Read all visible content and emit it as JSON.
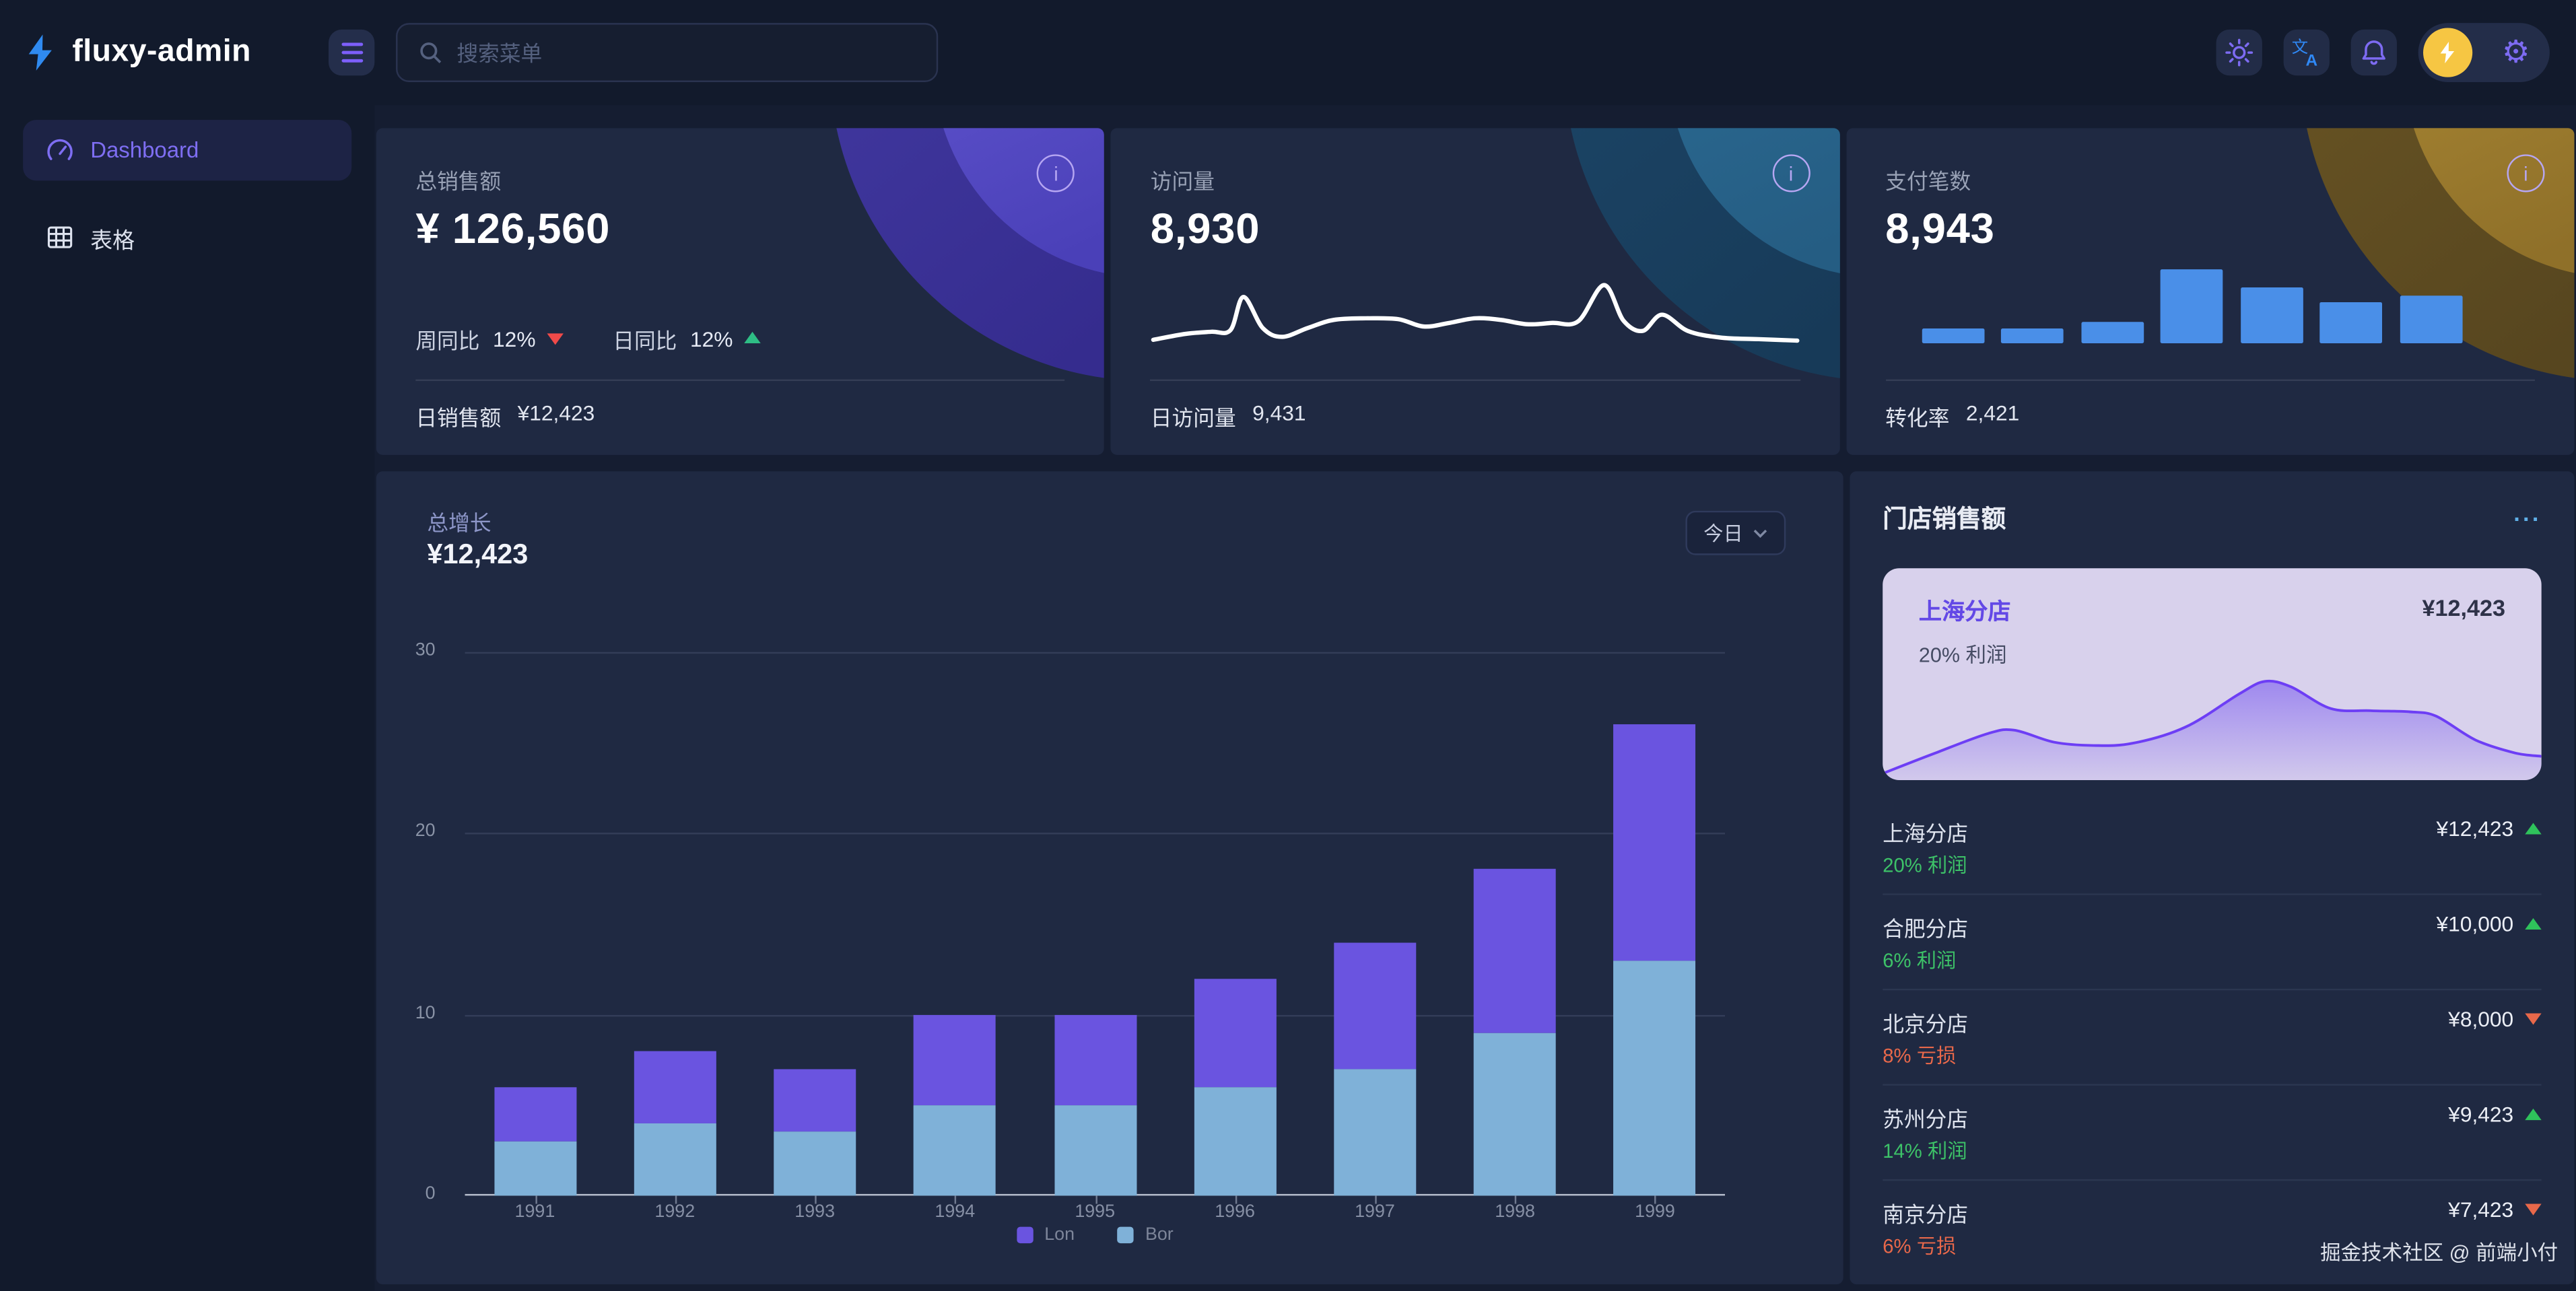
{
  "app": {
    "name": "fluxy-admin"
  },
  "topbar": {
    "search": {
      "placeholder": "搜索菜单"
    },
    "icons": {
      "menu": "hamburger",
      "search": "magnifier",
      "theme": "sun",
      "language": "translate",
      "notifications": "bell",
      "avatar": "lightning-bolt",
      "settings": "gear"
    }
  },
  "sidebar": {
    "items": [
      {
        "label": "Dashboard",
        "icon": "gauge",
        "active": true
      },
      {
        "label": "表格",
        "icon": "table",
        "active": false
      }
    ]
  },
  "stat_cards": [
    {
      "title": "总销售额",
      "value": "¥ 126,560",
      "theme": "purple",
      "trends": [
        {
          "label": "周同比",
          "value": "12%",
          "direction": "down"
        },
        {
          "label": "日同比",
          "value": "12%",
          "direction": "up"
        }
      ],
      "footer_label": "日销售额",
      "footer_value": "¥12,423"
    },
    {
      "title": "访问量",
      "value": "8,930",
      "theme": "blue",
      "footer_label": "日访问量",
      "footer_value": "9,431"
    },
    {
      "title": "支付笔数",
      "value": "8,943",
      "theme": "gold",
      "footer_label": "转化率",
      "footer_value": "2,421"
    }
  ],
  "growth_card": {
    "title": "总增长",
    "value": "¥12,423",
    "range_label": "今日"
  },
  "store_panel": {
    "title": "门店销售额",
    "menu_icon": "ellipsis",
    "highlight": {
      "name": "上海分店",
      "value": "¥12,423",
      "note": "20% 利润"
    },
    "stores": [
      {
        "name": "上海分店",
        "value": "¥12,423",
        "direction": "up",
        "note": "20% 利润",
        "note_tone": "profit"
      },
      {
        "name": "合肥分店",
        "value": "¥10,000",
        "direction": "up",
        "note": "6% 利润",
        "note_tone": "profit"
      },
      {
        "name": "北京分店",
        "value": "¥8,000",
        "direction": "down",
        "note": "8% 亏损",
        "note_tone": "loss"
      },
      {
        "name": "苏州分店",
        "value": "¥9,423",
        "direction": "up",
        "note": "14% 利润",
        "note_tone": "profit"
      },
      {
        "name": "南京分店",
        "value": "¥7,423",
        "direction": "down",
        "note": "6% 亏损",
        "note_tone": "loss"
      }
    ]
  },
  "footer": {
    "credit": "掘金技术社区 @ 前端小付"
  },
  "palette": {
    "page_bg": "#121a2c",
    "card_bg": "#1f2942",
    "accent_purple": "#7d6bf2",
    "brand_blue": "#2f8af0",
    "bar_purple": "#6a54e0",
    "bar_blue": "#7fb1d8",
    "mini_bar_blue": "#4a8fe8",
    "up_green": "#2fc25b",
    "down_red": "#f04a49",
    "down_orange": "#e8684a",
    "avatar_yellow": "#f6c643",
    "highlight_lavender": "#d8d1ec",
    "area_line_purple": "#6d3ef5"
  },
  "chart_data": [
    {
      "id": "total-growth",
      "type": "bar",
      "stacked": true,
      "title": "总增长",
      "categories": [
        "1991",
        "1992",
        "1993",
        "1994",
        "1995",
        "1996",
        "1997",
        "1998",
        "1999"
      ],
      "series": [
        {
          "name": "Lon",
          "color": "#6a54e0",
          "position": "top",
          "values": [
            3,
            4,
            3.5,
            5,
            5,
            6,
            7,
            9,
            13
          ]
        },
        {
          "name": "Bor",
          "color": "#7fb1d8",
          "position": "bottom",
          "values": [
            3,
            4,
            3.5,
            5,
            5,
            6,
            7,
            9,
            13
          ]
        }
      ],
      "ylim": [
        0,
        30
      ],
      "yticks": [
        0,
        10,
        20,
        30
      ],
      "grid": true,
      "legend_position": "bottom"
    },
    {
      "id": "visits-sparkline",
      "type": "line",
      "color": "#ffffff",
      "ylim": [
        0,
        10
      ],
      "points": [
        [
          0,
          1.8
        ],
        [
          5,
          2.6
        ],
        [
          9,
          2.9
        ],
        [
          12,
          3.1
        ],
        [
          14,
          7.6
        ],
        [
          17,
          3.4
        ],
        [
          20,
          2.2
        ],
        [
          24,
          3.4
        ],
        [
          28,
          4.5
        ],
        [
          33,
          4.7
        ],
        [
          38,
          4.6
        ],
        [
          42,
          3.6
        ],
        [
          46,
          4.1
        ],
        [
          50,
          4.7
        ],
        [
          54,
          4.5
        ],
        [
          58,
          3.9
        ],
        [
          62,
          4.1
        ],
        [
          66,
          4.3
        ],
        [
          70,
          9.2
        ],
        [
          73,
          4.4
        ],
        [
          76,
          3.0
        ],
        [
          79,
          5.2
        ],
        [
          83,
          3.0
        ],
        [
          88,
          2.1
        ],
        [
          94,
          1.9
        ],
        [
          100,
          1.7
        ]
      ]
    },
    {
      "id": "payments-bars",
      "type": "bar",
      "color": "#4a8fe8",
      "ylim": [
        0,
        10
      ],
      "values": [
        2,
        2,
        3,
        10,
        7.5,
        5.5,
        6.5
      ]
    },
    {
      "id": "store-area",
      "type": "area",
      "line_color": "#6d3ef5",
      "fill_color": "#7b5cf0",
      "ylim": [
        0,
        10
      ],
      "points": [
        [
          0,
          0.3
        ],
        [
          8,
          2.2
        ],
        [
          16,
          4.0
        ],
        [
          20,
          4.3
        ],
        [
          26,
          3.2
        ],
        [
          32,
          2.9
        ],
        [
          38,
          3.1
        ],
        [
          46,
          4.6
        ],
        [
          54,
          7.6
        ],
        [
          58,
          8.8
        ],
        [
          62,
          8.3
        ],
        [
          68,
          6.3
        ],
        [
          74,
          6.1
        ],
        [
          80,
          6.0
        ],
        [
          84,
          5.6
        ],
        [
          90,
          3.4
        ],
        [
          96,
          2.2
        ],
        [
          100,
          1.9
        ]
      ]
    }
  ]
}
